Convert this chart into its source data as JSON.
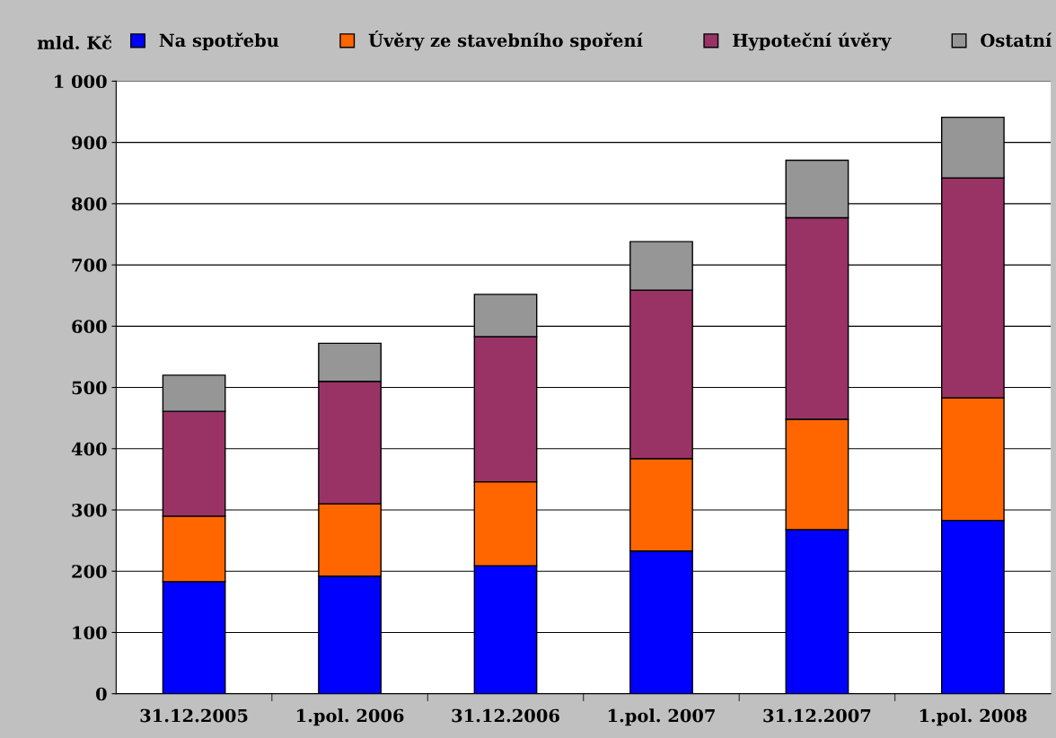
{
  "chart_data": {
    "type": "bar",
    "stacked": true,
    "ylabel": "mld. Kč",
    "categories": [
      "31.12.2005",
      "1.pol. 2006",
      "31.12.2006",
      "1.pol. 2007",
      "31.12.2007",
      "1.pol. 2008"
    ],
    "series": [
      {
        "name": "Na spotřebu",
        "color": "#0000ff",
        "values": [
          183,
          192,
          209,
          233,
          268,
          283
        ]
      },
      {
        "name": "Úvěry ze stavebního spoření",
        "color": "#ff6600",
        "values": [
          107,
          118,
          137,
          151,
          180,
          200
        ]
      },
      {
        "name": "Hypoteční úvěry",
        "color": "#993366",
        "values": [
          171,
          200,
          237,
          275,
          329,
          359
        ]
      },
      {
        "name": "Ostatní",
        "color": "#969696",
        "values": [
          59,
          62,
          69,
          79,
          94,
          99
        ]
      }
    ],
    "ylim": [
      0,
      1000
    ],
    "yticks": [
      0,
      100,
      200,
      300,
      400,
      500,
      600,
      700,
      800,
      900,
      {
        "value": 1000,
        "label": "1 000"
      }
    ],
    "grid": "y",
    "legend": "top"
  }
}
